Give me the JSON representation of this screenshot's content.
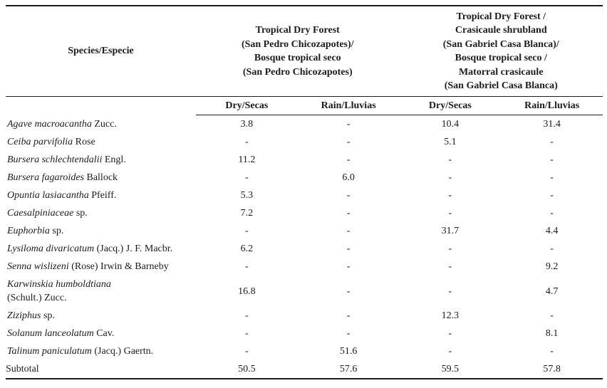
{
  "table": {
    "species_header": "Species/Especie",
    "site_headers": [
      {
        "name": "san-pedro-chicozapotes",
        "lines": [
          "Tropical Dry Forest",
          "(San Pedro Chicozapotes)/",
          "Bosque tropical seco",
          "(San Pedro Chicozapotes)"
        ]
      },
      {
        "name": "san-gabriel-casa-blanca",
        "lines": [
          "Tropical Dry Forest /",
          "Crasicaule shrubland",
          "(San Gabriel Casa Blanca)/",
          "Bosque tropical seco /",
          "Matorral crasicaule",
          "(San Gabriel Casa Blanca)"
        ]
      }
    ],
    "season_headers": [
      "Dry/Secas",
      "Rain/Lluvias",
      "Dry/Secas",
      "Rain/Lluvias"
    ],
    "rows": [
      {
        "name_italic": "Agave macroacantha",
        "name_roman": "Zucc.",
        "name_line2": "",
        "values": [
          "3.8",
          "-",
          "10.4",
          "31.4"
        ]
      },
      {
        "name_italic": "Ceiba parvifolia",
        "name_roman": "Rose",
        "name_line2": "",
        "values": [
          "-",
          "-",
          "5.1",
          "-"
        ]
      },
      {
        "name_italic": "Bursera schlechtendalii",
        "name_roman": "Engl.",
        "name_line2": "",
        "values": [
          "11.2",
          "-",
          "-",
          "-"
        ]
      },
      {
        "name_italic": "Bursera fagaroides",
        "name_roman": "Ballock",
        "name_line2": "",
        "values": [
          "-",
          "6.0",
          "-",
          "-"
        ]
      },
      {
        "name_italic": "Opuntia lasiacantha",
        "name_roman": "Pfeiff.",
        "name_line2": "",
        "values": [
          "5.3",
          "-",
          "-",
          "-"
        ]
      },
      {
        "name_italic": "Caesalpiniaceae",
        "name_roman": "sp.",
        "name_line2": "",
        "values": [
          "7.2",
          "-",
          "-",
          "-"
        ]
      },
      {
        "name_italic": "Euphorbia",
        "name_roman": "sp.",
        "name_line2": "",
        "values": [
          "-",
          "-",
          "31.7",
          "4.4"
        ]
      },
      {
        "name_italic": "Lysiloma divaricatum",
        "name_roman": "(Jacq.) J. F. Macbr.",
        "name_line2": "",
        "values": [
          "6.2",
          "-",
          "-",
          "-"
        ]
      },
      {
        "name_italic": "Senna wislizeni",
        "name_roman": "(Rose) Irwin & Barneby",
        "name_line2": "",
        "values": [
          "-",
          "-",
          "-",
          "9.2"
        ]
      },
      {
        "name_italic": "Karwinskia humboldtiana",
        "name_roman": "",
        "name_line2": "(Schult.) Zucc.",
        "values": [
          "16.8",
          "-",
          "-",
          "4.7"
        ]
      },
      {
        "name_italic": "Ziziphus",
        "name_roman": "sp.",
        "name_line2": "",
        "values": [
          "-",
          "-",
          "12.3",
          "-"
        ]
      },
      {
        "name_italic": "Solanum lanceolatum",
        "name_roman": "Cav.",
        "name_line2": "",
        "values": [
          "-",
          "-",
          "-",
          "8.1"
        ]
      },
      {
        "name_italic": "Talinum paniculatum",
        "name_roman": "(Jacq.) Gaertn.",
        "name_line2": "",
        "values": [
          "-",
          "51.6",
          "-",
          "-"
        ]
      }
    ],
    "subtotal_label": "Subtotal",
    "subtotal_values": [
      "50.5",
      "57.6",
      "59.5",
      "57.8"
    ]
  },
  "colors": {
    "text": "#1c1c1c",
    "rule": "#1c1c1c",
    "background": "#ffffff"
  }
}
